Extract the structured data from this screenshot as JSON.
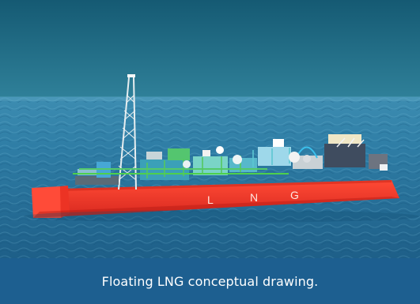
{
  "image": {
    "caption": "Floating LNG conceptual drawing.",
    "hull_letters": [
      "L",
      "N",
      "G"
    ],
    "colors": {
      "sky_top": "#1a5a76",
      "sky_bottom": "#2f7f98",
      "sea": "#2a6f93",
      "hull": "#ef3b2d",
      "caption_bar": "#1d5f90",
      "caption_text": "#ffffff"
    }
  }
}
